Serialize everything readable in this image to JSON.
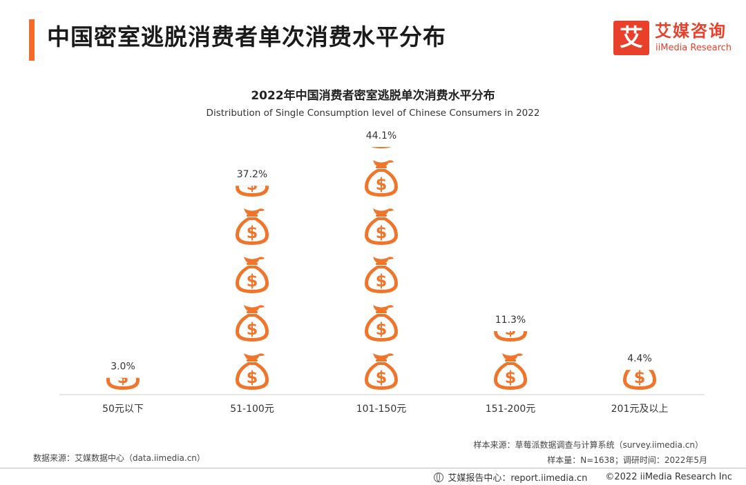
{
  "header": {
    "title": "中国密室逃脱消费者单次消费水平分布",
    "logo_mark": "艾",
    "logo_cn": "艾媒咨询",
    "logo_en": "iiMedia Research",
    "accent_color": "#f26b2a",
    "logo_color": "#e8402a"
  },
  "chart_data": {
    "type": "bar",
    "title": "2022年中国消费者密室逃脱单次消费水平分布",
    "subtitle": "Distribution of Single Consumption level of Chinese Consumers in 2022",
    "categories": [
      "50元以下",
      "51-100元",
      "101-150元",
      "151-200元",
      "201元及以上"
    ],
    "values": [
      3.0,
      37.2,
      44.1,
      11.3,
      4.4
    ],
    "value_labels": [
      "3.0%",
      "37.2%",
      "44.1%",
      "11.3%",
      "4.4%"
    ],
    "unit": "%",
    "icon": "money-bag-icon",
    "bar_color": "#f0752a",
    "grid": false,
    "legend": "none",
    "xlabel": "",
    "ylabel": ""
  },
  "footer": {
    "source": "数据来源：艾媒数据中心（data.iimedia.cn）",
    "sample_source": "样本来源：草莓派数据调查与计算系统（survey.iimedia.cn）",
    "sample_info": "样本量：N=1638；调研时间：2022年5月",
    "report_center": "艾媒报告中心：report.iimedia.cn",
    "copyright": "©2022  iiMedia Research  Inc"
  }
}
